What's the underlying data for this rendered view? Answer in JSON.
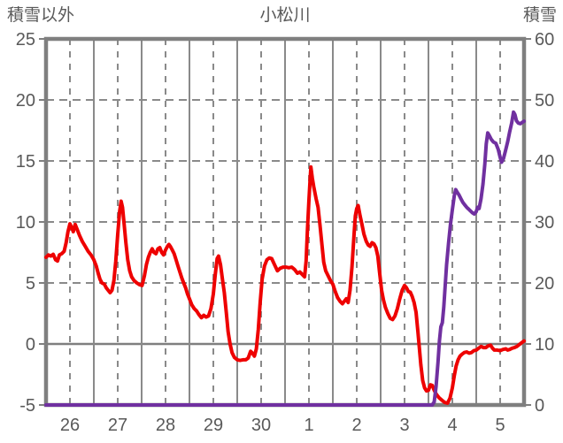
{
  "header": {
    "left_axis_title": "積雪以外",
    "chart_title": "小松川",
    "right_axis_title": "積雪"
  },
  "colors": {
    "temperature_line": "#ee0000",
    "snow_line": "#7030a0",
    "grid": "#8a8a8a",
    "border": "#7f7f7f",
    "text": "#595959",
    "background": "#ffffff"
  },
  "chart_data": {
    "type": "line",
    "title": "小松川",
    "legend": "none",
    "grid": true,
    "x_axis": {
      "tick_labels": [
        "26",
        "27",
        "28",
        "29",
        "30",
        "1",
        "2",
        "3",
        "4",
        "5"
      ],
      "days_span": 10,
      "x_unit": "days from 00:00 of day 26",
      "solid_gridlines_at": "day boundaries",
      "dashed_gridlines_at": "half days (noon)"
    },
    "y_axis_left": {
      "title": "積雪以外",
      "ticks": [
        -5,
        0,
        5,
        10,
        15,
        20,
        25
      ],
      "range": [
        -5,
        25
      ],
      "zero_line": "solid"
    },
    "y_axis_right": {
      "title": "積雪",
      "ticks": [
        0,
        10,
        20,
        30,
        40,
        50,
        60
      ],
      "range": [
        0,
        60
      ]
    },
    "series": [
      {
        "name": "積雪以外",
        "axis": "left",
        "color": "#ee0000",
        "points": [
          [
            0,
            7.1
          ],
          [
            0.05,
            7.3
          ],
          [
            0.1,
            7.2
          ],
          [
            0.15,
            7.35
          ],
          [
            0.2,
            6.9
          ],
          [
            0.24,
            6.8
          ],
          [
            0.28,
            7.3
          ],
          [
            0.33,
            7.4
          ],
          [
            0.38,
            7.6
          ],
          [
            0.42,
            8.3
          ],
          [
            0.46,
            9.2
          ],
          [
            0.5,
            9.85
          ],
          [
            0.54,
            9.5
          ],
          [
            0.57,
            9.2
          ],
          [
            0.61,
            9.8
          ],
          [
            0.65,
            9.4
          ],
          [
            0.7,
            8.9
          ],
          [
            0.76,
            8.4
          ],
          [
            0.82,
            8.0
          ],
          [
            0.88,
            7.6
          ],
          [
            0.94,
            7.3
          ],
          [
            1.0,
            6.9
          ],
          [
            1.05,
            6.4
          ],
          [
            1.09,
            5.8
          ],
          [
            1.13,
            5.3
          ],
          [
            1.17,
            5.0
          ],
          [
            1.22,
            4.9
          ],
          [
            1.26,
            4.6
          ],
          [
            1.3,
            4.4
          ],
          [
            1.34,
            4.2
          ],
          [
            1.38,
            4.4
          ],
          [
            1.42,
            5.2
          ],
          [
            1.46,
            6.8
          ],
          [
            1.5,
            9.0
          ],
          [
            1.54,
            10.9
          ],
          [
            1.57,
            11.7
          ],
          [
            1.6,
            11.2
          ],
          [
            1.63,
            10.0
          ],
          [
            1.67,
            8.3
          ],
          [
            1.71,
            6.9
          ],
          [
            1.75,
            6.0
          ],
          [
            1.79,
            5.5
          ],
          [
            1.84,
            5.2
          ],
          [
            1.9,
            5.0
          ],
          [
            1.96,
            4.85
          ],
          [
            2.01,
            4.8
          ],
          [
            2.06,
            5.6
          ],
          [
            2.1,
            6.5
          ],
          [
            2.14,
            7.1
          ],
          [
            2.18,
            7.5
          ],
          [
            2.22,
            7.8
          ],
          [
            2.26,
            7.5
          ],
          [
            2.3,
            7.4
          ],
          [
            2.34,
            7.8
          ],
          [
            2.38,
            7.9
          ],
          [
            2.42,
            7.5
          ],
          [
            2.46,
            7.3
          ],
          [
            2.5,
            7.7
          ],
          [
            2.54,
            8.0
          ],
          [
            2.57,
            8.15
          ],
          [
            2.6,
            8.0
          ],
          [
            2.64,
            7.7
          ],
          [
            2.68,
            7.4
          ],
          [
            2.72,
            6.9
          ],
          [
            2.76,
            6.4
          ],
          [
            2.8,
            5.9
          ],
          [
            2.84,
            5.4
          ],
          [
            2.88,
            5.0
          ],
          [
            2.92,
            4.6
          ],
          [
            2.96,
            4.1
          ],
          [
            3.0,
            3.7
          ],
          [
            3.05,
            3.2
          ],
          [
            3.1,
            2.9
          ],
          [
            3.15,
            2.7
          ],
          [
            3.2,
            2.4
          ],
          [
            3.25,
            2.15
          ],
          [
            3.3,
            2.35
          ],
          [
            3.35,
            2.2
          ],
          [
            3.4,
            2.3
          ],
          [
            3.45,
            2.9
          ],
          [
            3.5,
            4.1
          ],
          [
            3.54,
            5.7
          ],
          [
            3.58,
            7.0
          ],
          [
            3.61,
            7.2
          ],
          [
            3.65,
            6.5
          ],
          [
            3.69,
            5.3
          ],
          [
            3.73,
            4.2
          ],
          [
            3.77,
            2.6
          ],
          [
            3.81,
            1.0
          ],
          [
            3.85,
            0.0
          ],
          [
            3.89,
            -0.7
          ],
          [
            3.94,
            -1.1
          ],
          [
            4.0,
            -1.3
          ],
          [
            4.06,
            -1.35
          ],
          [
            4.12,
            -1.3
          ],
          [
            4.18,
            -1.3
          ],
          [
            4.23,
            -1.15
          ],
          [
            4.28,
            -0.6
          ],
          [
            4.32,
            -0.75
          ],
          [
            4.36,
            -1.0
          ],
          [
            4.4,
            -0.4
          ],
          [
            4.44,
            1.2
          ],
          [
            4.48,
            3.4
          ],
          [
            4.52,
            5.3
          ],
          [
            4.57,
            6.4
          ],
          [
            4.62,
            6.9
          ],
          [
            4.67,
            7.05
          ],
          [
            4.72,
            7.0
          ],
          [
            4.78,
            6.5
          ],
          [
            4.84,
            6.0
          ],
          [
            4.9,
            6.2
          ],
          [
            4.96,
            6.3
          ],
          [
            5.02,
            6.3
          ],
          [
            5.08,
            6.25
          ],
          [
            5.14,
            6.3
          ],
          [
            5.2,
            6.1
          ],
          [
            5.26,
            5.8
          ],
          [
            5.31,
            5.9
          ],
          [
            5.36,
            5.7
          ],
          [
            5.41,
            5.5
          ],
          [
            5.44,
            6.8
          ],
          [
            5.47,
            9.5
          ],
          [
            5.5,
            11.8
          ],
          [
            5.52,
            13.2
          ],
          [
            5.54,
            14.5
          ],
          [
            5.57,
            13.6
          ],
          [
            5.6,
            12.9
          ],
          [
            5.65,
            11.9
          ],
          [
            5.69,
            11.2
          ],
          [
            5.73,
            9.8
          ],
          [
            5.77,
            8.2
          ],
          [
            5.81,
            6.7
          ],
          [
            5.85,
            6.0
          ],
          [
            5.9,
            5.6
          ],
          [
            5.95,
            5.2
          ],
          [
            6.0,
            4.9
          ],
          [
            6.05,
            4.3
          ],
          [
            6.1,
            3.8
          ],
          [
            6.15,
            3.5
          ],
          [
            6.2,
            3.3
          ],
          [
            6.24,
            3.5
          ],
          [
            6.28,
            3.7
          ],
          [
            6.32,
            3.4
          ],
          [
            6.36,
            4.4
          ],
          [
            6.4,
            6.3
          ],
          [
            6.44,
            8.8
          ],
          [
            6.47,
            10.5
          ],
          [
            6.5,
            11.1
          ],
          [
            6.53,
            11.35
          ],
          [
            6.57,
            10.5
          ],
          [
            6.61,
            9.8
          ],
          [
            6.65,
            9.0
          ],
          [
            6.7,
            8.4
          ],
          [
            6.74,
            8.1
          ],
          [
            6.78,
            8.0
          ],
          [
            6.82,
            8.3
          ],
          [
            6.86,
            8.2
          ],
          [
            6.9,
            7.9
          ],
          [
            6.94,
            7.2
          ],
          [
            6.98,
            5.8
          ],
          [
            7.02,
            4.4
          ],
          [
            7.06,
            3.6
          ],
          [
            7.1,
            3.0
          ],
          [
            7.15,
            2.5
          ],
          [
            7.2,
            2.1
          ],
          [
            7.25,
            2.0
          ],
          [
            7.3,
            2.3
          ],
          [
            7.35,
            2.9
          ],
          [
            7.4,
            3.7
          ],
          [
            7.45,
            4.4
          ],
          [
            7.5,
            4.8
          ],
          [
            7.54,
            4.6
          ],
          [
            7.58,
            4.3
          ],
          [
            7.62,
            4.25
          ],
          [
            7.66,
            3.9
          ],
          [
            7.7,
            3.4
          ],
          [
            7.74,
            2.6
          ],
          [
            7.78,
            1.0
          ],
          [
            7.81,
            -0.3
          ],
          [
            7.84,
            -1.7
          ],
          [
            7.88,
            -3.0
          ],
          [
            7.92,
            -3.6
          ],
          [
            7.96,
            -3.85
          ],
          [
            8.0,
            -3.8
          ],
          [
            8.04,
            -3.35
          ],
          [
            8.08,
            -3.4
          ],
          [
            8.12,
            -3.8
          ],
          [
            8.17,
            -4.15
          ],
          [
            8.22,
            -4.4
          ],
          [
            8.28,
            -4.6
          ],
          [
            8.34,
            -4.8
          ],
          [
            8.4,
            -4.85
          ],
          [
            8.45,
            -4.45
          ],
          [
            8.5,
            -3.6
          ],
          [
            8.54,
            -2.6
          ],
          [
            8.58,
            -1.8
          ],
          [
            8.62,
            -1.3
          ],
          [
            8.66,
            -1.0
          ],
          [
            8.7,
            -0.85
          ],
          [
            8.75,
            -0.7
          ],
          [
            8.8,
            -0.65
          ],
          [
            8.85,
            -0.75
          ],
          [
            8.9,
            -0.7
          ],
          [
            8.95,
            -0.55
          ],
          [
            9.0,
            -0.5
          ],
          [
            9.05,
            -0.35
          ],
          [
            9.1,
            -0.2
          ],
          [
            9.15,
            -0.3
          ],
          [
            9.2,
            -0.3
          ],
          [
            9.25,
            -0.15
          ],
          [
            9.3,
            -0.1
          ],
          [
            9.34,
            -0.35
          ],
          [
            9.38,
            -0.5
          ],
          [
            9.44,
            -0.5
          ],
          [
            9.5,
            -0.55
          ],
          [
            9.56,
            -0.45
          ],
          [
            9.62,
            -0.4
          ],
          [
            9.66,
            -0.5
          ],
          [
            9.7,
            -0.45
          ],
          [
            9.75,
            -0.35
          ],
          [
            9.8,
            -0.3
          ],
          [
            9.85,
            -0.2
          ],
          [
            9.9,
            -0.05
          ],
          [
            9.95,
            0.1
          ],
          [
            10.0,
            0.25
          ]
        ]
      },
      {
        "name": "積雪",
        "axis": "right",
        "color": "#7030a0",
        "points": [
          [
            0,
            0
          ],
          [
            0.5,
            0
          ],
          [
            1,
            0
          ],
          [
            1.5,
            0
          ],
          [
            2,
            0
          ],
          [
            2.5,
            0
          ],
          [
            3,
            0
          ],
          [
            3.5,
            0
          ],
          [
            4,
            0
          ],
          [
            4.5,
            0
          ],
          [
            5,
            0
          ],
          [
            5.5,
            0
          ],
          [
            6,
            0
          ],
          [
            6.5,
            0
          ],
          [
            7,
            0
          ],
          [
            7.5,
            0
          ],
          [
            8.0,
            0
          ],
          [
            8.08,
            0
          ],
          [
            8.12,
            0.5
          ],
          [
            8.16,
            3
          ],
          [
            8.2,
            7
          ],
          [
            8.23,
            10.5
          ],
          [
            8.26,
            12.8
          ],
          [
            8.29,
            13.5
          ],
          [
            8.32,
            16
          ],
          [
            8.35,
            19.5
          ],
          [
            8.38,
            23
          ],
          [
            8.42,
            26.5
          ],
          [
            8.46,
            29.5
          ],
          [
            8.5,
            32
          ],
          [
            8.54,
            34.3
          ],
          [
            8.57,
            35.3
          ],
          [
            8.6,
            34.9
          ],
          [
            8.64,
            34.4
          ],
          [
            8.68,
            33.8
          ],
          [
            8.72,
            33.2
          ],
          [
            8.76,
            32.8
          ],
          [
            8.8,
            32.4
          ],
          [
            8.84,
            32.1
          ],
          [
            8.88,
            31.8
          ],
          [
            8.92,
            31.5
          ],
          [
            8.96,
            31.3
          ],
          [
            9.0,
            31.7
          ],
          [
            9.03,
            32.4
          ],
          [
            9.06,
            32.2
          ],
          [
            9.1,
            33.8
          ],
          [
            9.14,
            36.2
          ],
          [
            9.18,
            39.5
          ],
          [
            9.21,
            42.8
          ],
          [
            9.24,
            44.6
          ],
          [
            9.27,
            44.2
          ],
          [
            9.31,
            43.6
          ],
          [
            9.36,
            43.1
          ],
          [
            9.41,
            42.9
          ],
          [
            9.46,
            41.9
          ],
          [
            9.5,
            40.6
          ],
          [
            9.53,
            39.8
          ],
          [
            9.57,
            40.4
          ],
          [
            9.61,
            41.6
          ],
          [
            9.66,
            43.2
          ],
          [
            9.7,
            44.8
          ],
          [
            9.74,
            46.2
          ],
          [
            9.78,
            48.0
          ],
          [
            9.81,
            47.6
          ],
          [
            9.84,
            46.6
          ],
          [
            9.88,
            46.2
          ],
          [
            9.92,
            46.1
          ],
          [
            9.96,
            46.3
          ],
          [
            10.0,
            46.5
          ]
        ]
      }
    ]
  }
}
